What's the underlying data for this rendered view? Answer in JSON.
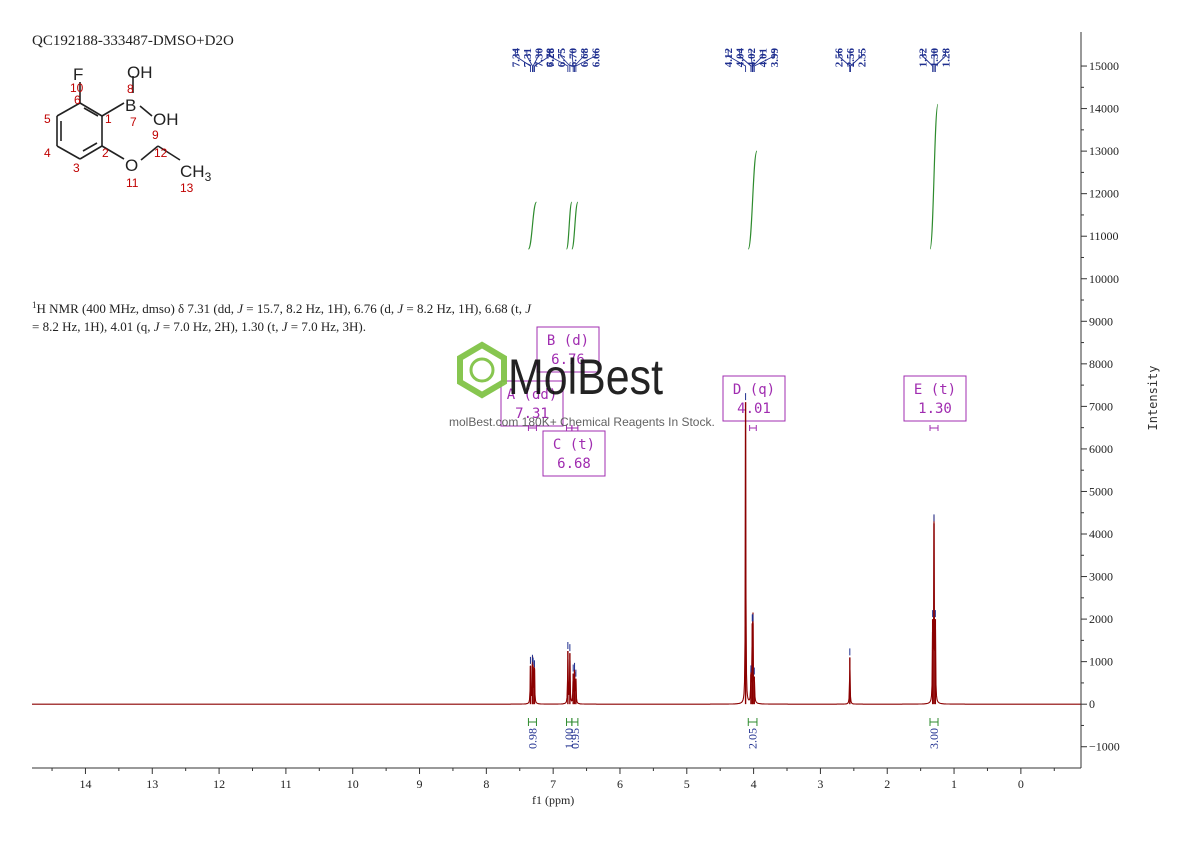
{
  "sample_id": "QC192188-333487-DMSO+D2O",
  "nmr_text": {
    "line1_parts": [
      {
        "t": "1",
        "sup": true
      },
      {
        "t": "H NMR (400 MHz, dmso) δ 7.31 (dd, "
      },
      {
        "t": "J",
        "it": true
      },
      {
        "t": " = 15.7, 8.2 Hz, 1H), 6.76 (d, "
      },
      {
        "t": "J",
        "it": true
      },
      {
        "t": " = 8.2 Hz, 1H), 6.68 (t, "
      },
      {
        "t": "J",
        "it": true
      }
    ],
    "line2_parts": [
      {
        "t": "= 8.2 Hz, 1H), 4.01 (q, "
      },
      {
        "t": "J",
        "it": true
      },
      {
        "t": " = 7.0 Hz, 2H), 1.30 (t, "
      },
      {
        "t": "J",
        "it": true
      },
      {
        "t": " = 7.0 Hz, 3H)."
      }
    ]
  },
  "watermark": {
    "brand": "MolBest",
    "tagline": "molBest.com 180K+ Chemical Reagents In Stock."
  },
  "structure": {
    "atoms": {
      "F": "F",
      "B": "B",
      "OH_top": "OH",
      "OH_mid": "OH",
      "O": "O",
      "CH": "CH",
      "sub3": "3"
    },
    "numbers": {
      "n1": "1",
      "n2": "2",
      "n3": "3",
      "n4": "4",
      "n5": "5",
      "n6": "6",
      "n7": "7",
      "n8": "8",
      "n9": "9",
      "n10": "10",
      "n11": "11",
      "n12": "12",
      "n13": "13"
    }
  },
  "chart_data": {
    "type": "line",
    "xlabel": "f1 (ppm)",
    "ylabel": "Intensity",
    "xlim": [
      14.8,
      -0.9
    ],
    "ylim": [
      -1500,
      15800
    ],
    "x_reversed": true,
    "x_ticks": [
      14,
      13,
      12,
      11,
      10,
      9,
      8,
      7,
      6,
      5,
      4,
      3,
      2,
      1,
      0
    ],
    "y_ticks": [
      -1000,
      0,
      1000,
      2000,
      3000,
      4000,
      5000,
      6000,
      7000,
      8000,
      9000,
      10000,
      11000,
      12000,
      13000,
      14000,
      15000
    ],
    "peaks": [
      {
        "ppm": 7.34,
        "height": 900
      },
      {
        "ppm": 7.31,
        "height": 950
      },
      {
        "ppm": 7.3,
        "height": 880
      },
      {
        "ppm": 7.28,
        "height": 820
      },
      {
        "ppm": 6.78,
        "height": 1250
      },
      {
        "ppm": 6.75,
        "height": 1200
      },
      {
        "ppm": 6.7,
        "height": 720
      },
      {
        "ppm": 6.68,
        "height": 760
      },
      {
        "ppm": 6.66,
        "height": 600
      },
      {
        "ppm": 4.12,
        "height": 7100
      },
      {
        "ppm": 4.04,
        "height": 700
      },
      {
        "ppm": 4.02,
        "height": 1900
      },
      {
        "ppm": 4.01,
        "height": 1900
      },
      {
        "ppm": 3.99,
        "height": 650
      },
      {
        "ppm": 2.56,
        "height": 1100
      },
      {
        "ppm": 1.32,
        "height": 2000
      },
      {
        "ppm": 1.3,
        "height": 4250
      },
      {
        "ppm": 1.28,
        "height": 2000
      }
    ],
    "peak_label_groups": [
      {
        "labels": [
          "7.34",
          "7.31",
          "7.30",
          "7.28"
        ],
        "ppm": [
          7.34,
          7.31,
          7.3,
          7.28
        ]
      },
      {
        "labels": [
          "6.78",
          "6.75",
          "6.70",
          "6.68",
          "6.66"
        ],
        "ppm": [
          6.78,
          6.75,
          6.7,
          6.68,
          6.66
        ]
      },
      {
        "labels": [
          "4.12",
          "4.04",
          "4.02",
          "4.01",
          "3.99"
        ],
        "ppm": [
          4.12,
          4.04,
          4.02,
          4.01,
          3.99
        ]
      },
      {
        "labels": [
          "2.56",
          "2.56",
          "2.55"
        ],
        "ppm": [
          2.56,
          2.56,
          2.55
        ]
      },
      {
        "labels": [
          "1.32",
          "1.30",
          "1.28"
        ],
        "ppm": [
          1.32,
          1.3,
          1.28
        ]
      }
    ],
    "integrals": [
      {
        "from": 7.37,
        "to": 7.25,
        "value": "0.98",
        "curve_lo": 10700,
        "curve_hi": 11800
      },
      {
        "from": 6.8,
        "to": 6.72,
        "value": "1.00",
        "curve_lo": 10700,
        "curve_hi": 11800
      },
      {
        "from": 6.72,
        "to": 6.63,
        "value": "0.95",
        "curve_lo": 10700,
        "curve_hi": 11800
      },
      {
        "from": 4.08,
        "to": 3.95,
        "value": "2.05",
        "curve_lo": 10700,
        "curve_hi": 13000
      },
      {
        "from": 1.36,
        "to": 1.24,
        "value": "3.00",
        "curve_lo": 10700,
        "curve_hi": 14100
      }
    ],
    "multiplets": [
      {
        "id": "A",
        "mult": "dd",
        "shift": "7.31",
        "range": [
          7.37,
          7.25
        ]
      },
      {
        "id": "B",
        "mult": "d",
        "shift": "6.76",
        "range": [
          6.8,
          6.72
        ]
      },
      {
        "id": "C",
        "mult": "t",
        "shift": "6.68",
        "range": [
          6.72,
          6.63
        ]
      },
      {
        "id": "D",
        "mult": "q",
        "shift": "4.01",
        "range": [
          4.06,
          3.96
        ]
      },
      {
        "id": "E",
        "mult": "t",
        "shift": "1.30",
        "range": [
          1.36,
          1.24
        ]
      }
    ],
    "colors": {
      "spectrum": "#8b0000",
      "integral": "#2e8b2e",
      "peak_label": "#1f2f8f",
      "multiplet_box": "#a02cb0",
      "structure_numbers": "#c00000",
      "watermark": "#7dc242"
    }
  }
}
